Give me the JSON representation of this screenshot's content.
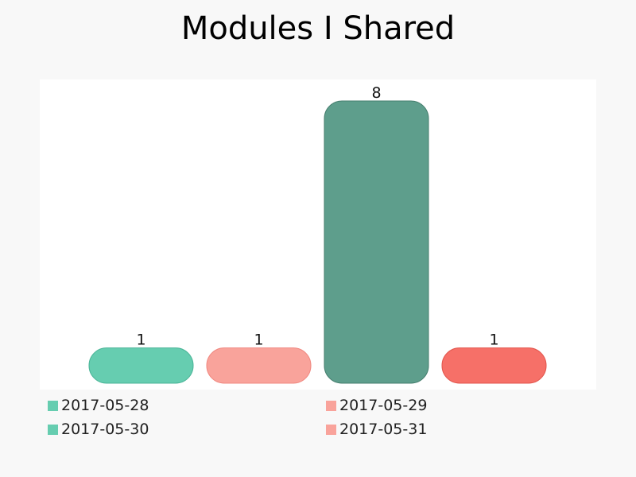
{
  "chart_data": {
    "type": "bar",
    "title": "Modules I Shared",
    "categories": [
      "2017-05-28",
      "2017-05-29",
      "2017-05-30",
      "2017-05-31"
    ],
    "values": [
      1,
      1,
      8,
      1
    ],
    "data_labels": [
      "1",
      "1",
      "8",
      "1"
    ],
    "ylim": [
      0,
      8
    ],
    "grid": false,
    "legend_position": "bottom",
    "legend_entries": [
      "2017-05-28",
      "2017-05-29",
      "2017-05-30",
      "2017-05-31"
    ],
    "colors": {
      "bar_fill": [
        "#66cdb0",
        "#f9a39b",
        "#5e9e8c",
        "#f67068"
      ],
      "bar_stroke": [
        "#49b497",
        "#f08880",
        "#467e6e",
        "#e2554c"
      ],
      "legend_swatch": [
        "#66cdb0",
        "#f9a39b",
        "#66cdb0",
        "#f9a39b"
      ],
      "plot_background": "#ffffff",
      "page_background": "#f8f8f8"
    }
  }
}
